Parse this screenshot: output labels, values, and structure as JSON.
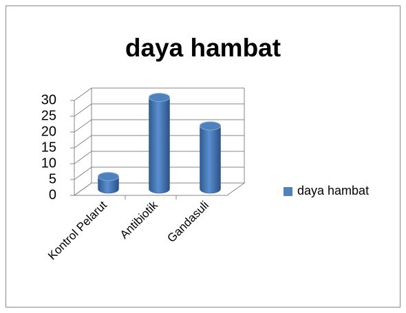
{
  "chart_data": {
    "type": "bar3d",
    "title": "daya hambat",
    "categories": [
      "Kontrol Pelarut",
      "Antibiotik",
      "Gandasuli"
    ],
    "series": [
      {
        "name": "daya hambat",
        "color": "#4f81bd",
        "values": [
          4,
          29,
          20
        ]
      }
    ],
    "ylim": [
      0,
      30
    ],
    "yticks": [
      0,
      5,
      10,
      15,
      20,
      25,
      30
    ],
    "grid": true,
    "legend": "right"
  }
}
